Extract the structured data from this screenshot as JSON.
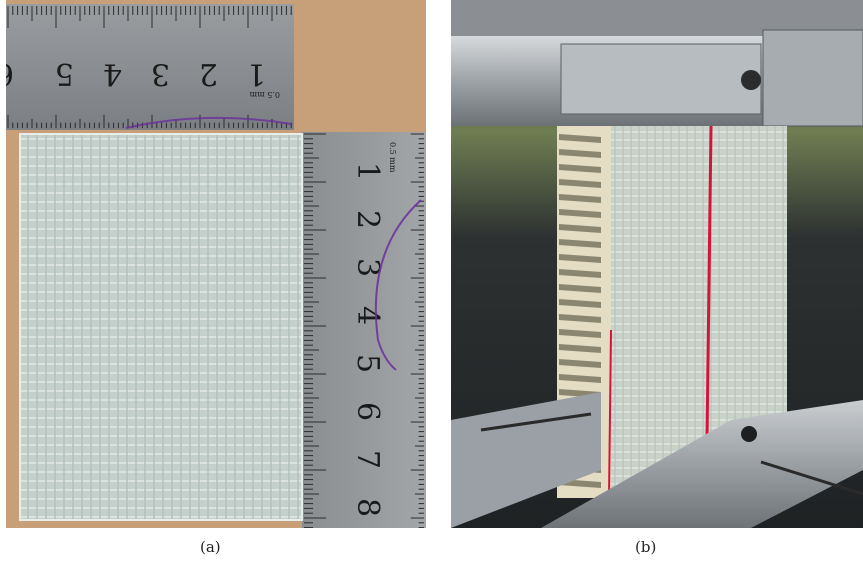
{
  "figure": {
    "panels": [
      {
        "id": "a",
        "caption": "(a)",
        "subject": "photo: glass-fibre face sheet specimen laid next to two metal rulers",
        "top_ruler_numbers": [
          "6",
          "5",
          "4",
          "3",
          "2",
          "1"
        ],
        "top_ruler_unit": "0.5 mm",
        "side_ruler_numbers": [
          "1",
          "2",
          "3",
          "4",
          "5",
          "6",
          "7",
          "8"
        ],
        "side_ruler_unit": "0.5 mm"
      },
      {
        "id": "b",
        "caption": "(b)",
        "subject": "photo: sandwich panel specimen clamped upright in a test fixture, red line marked on face"
      }
    ]
  },
  "colors": {
    "background": "#ffffff",
    "cardboard": "#c9a27a",
    "ruler_steel": "#8e9194",
    "specimen": "#b9c7c2",
    "marker_red": "#d4143a",
    "marker_purple": "#6a2f9a",
    "fixture_steel": "#aab0b5"
  }
}
